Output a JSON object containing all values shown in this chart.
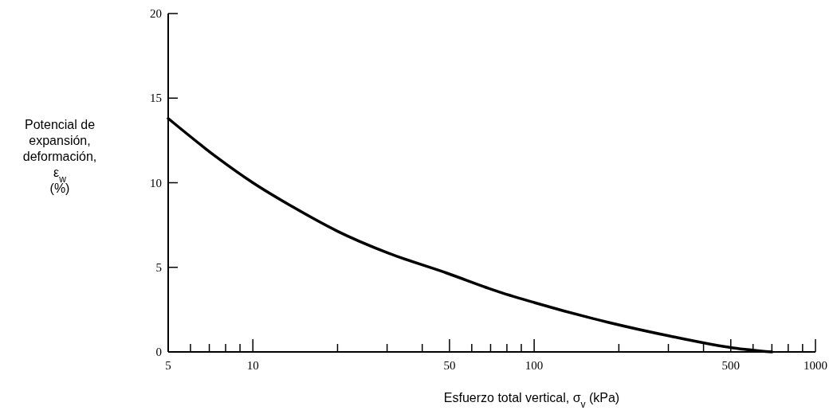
{
  "chart_data": {
    "type": "line",
    "xlabel": "Esfuerzo total vertical, σ$_{v}$ (kPa)",
    "ylabel": "Potencial de expansión, deformación, ε$_{w}$ (%)",
    "log": "x",
    "xlim": [
      5,
      1000
    ],
    "ylim": [
      0,
      20
    ],
    "xticks": [
      5,
      {
        "value": 6,
        "label": null
      },
      {
        "value": 7,
        "label": null
      },
      {
        "value": 8,
        "label": null
      },
      {
        "value": 9,
        "label": null
      },
      10,
      {
        "value": 20,
        "label": null
      },
      {
        "value": 30,
        "label": null
      },
      {
        "value": 40,
        "label": null
      },
      50,
      {
        "value": 60,
        "label": null
      },
      {
        "value": 70,
        "label": null
      },
      {
        "value": 80,
        "label": null
      },
      {
        "value": 90,
        "label": null
      },
      100,
      {
        "value": 200,
        "label": null
      },
      {
        "value": 300,
        "label": null
      },
      {
        "value": 400,
        "label": null
      },
      500,
      {
        "value": 600,
        "label": null
      },
      {
        "value": 700,
        "label": null
      },
      {
        "value": 800,
        "label": null
      },
      {
        "value": 900,
        "label": null
      },
      1000
    ],
    "yticks": [
      0,
      5,
      10,
      15,
      20
    ],
    "grid": false,
    "marker": "none",
    "line_style": "solid",
    "series": [
      {
        "color": "#000000",
        "x": [
          5,
          7.45,
          10,
          13.9,
          19.9,
          30.3,
          48.9,
          75,
          100,
          161,
          303,
          510,
          700
        ],
        "values": [
          13.8,
          11.5,
          10.0,
          8.56,
          7.15,
          5.84,
          4.66,
          3.55,
          2.92,
          1.98,
          0.94,
          0.24,
          0
        ]
      }
    ]
  }
}
